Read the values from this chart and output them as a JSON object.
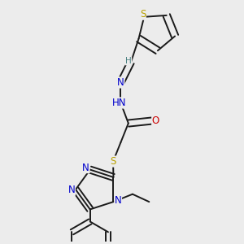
{
  "bg_color": "#ececec",
  "bond_color": "#1a1a1a",
  "atom_colors": {
    "S": "#b8a000",
    "N": "#0000cc",
    "O": "#cc0000",
    "C": "#1a1a1a",
    "H": "#4a8080"
  },
  "lw": 1.4,
  "fs": 8.5,
  "fss": 7.5
}
